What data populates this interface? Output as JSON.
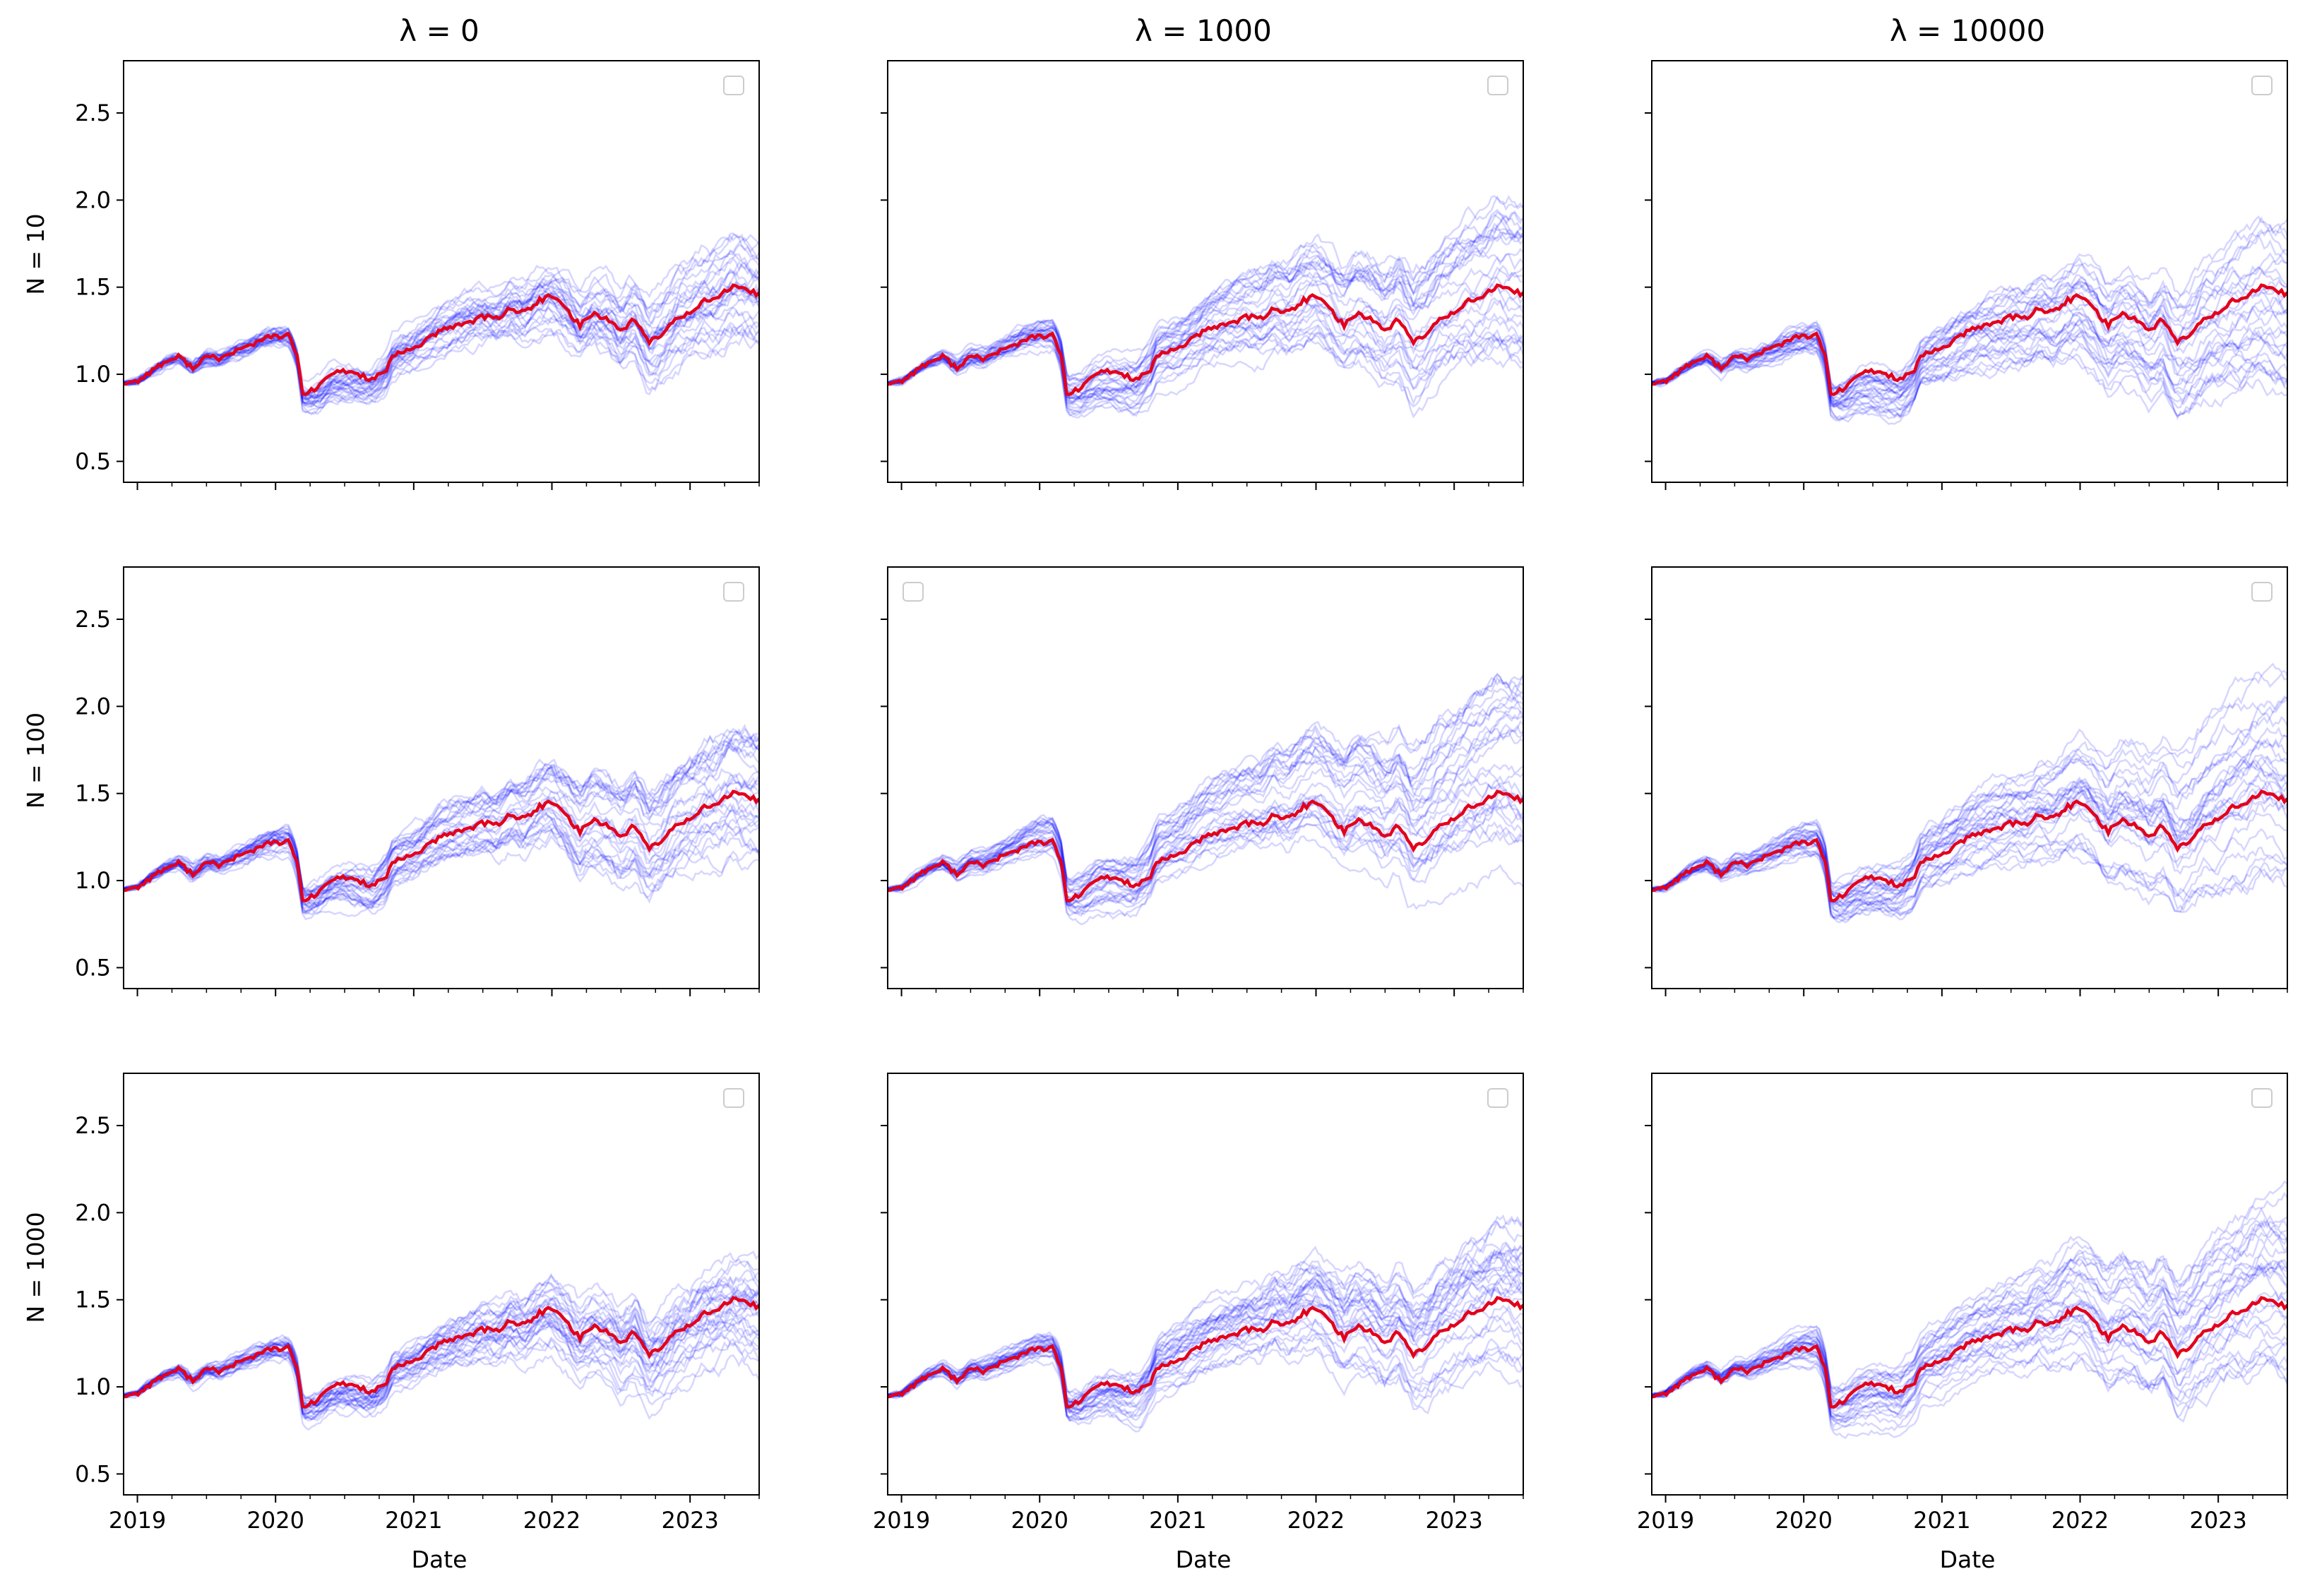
{
  "figure": {
    "col_titles": [
      "λ = 0",
      "λ = 1000",
      "λ = 10000"
    ],
    "row_labels": [
      "N = 10",
      "N = 100",
      "N = 1000"
    ],
    "xlabel": "Date"
  },
  "colors": {
    "benchmark": "#e3001b",
    "simulations": "#0000ff",
    "axes": "#000000",
    "background": "#ffffff"
  },
  "chart_data": {
    "type": "line",
    "layout": "3x3 grid of subplots, shared x and y axes",
    "x_range": [
      2018.9,
      2023.5
    ],
    "y_range": [
      0.38,
      2.8
    ],
    "x_ticks": [
      2019,
      2020,
      2021,
      2022,
      2023
    ],
    "x_tick_labels": [
      "2019",
      "2020",
      "2021",
      "2022",
      "2023"
    ],
    "y_ticks": [
      0.5,
      1.0,
      1.5,
      2.0,
      2.5
    ],
    "y_tick_labels": [
      "0.5",
      "1.0",
      "1.5",
      "2.0",
      "2.5"
    ],
    "benchmark_series": {
      "name": "benchmark",
      "x": [
        2018.9,
        2019.0,
        2019.1,
        2019.2,
        2019.3,
        2019.4,
        2019.5,
        2019.6,
        2019.7,
        2019.8,
        2019.9,
        2020.0,
        2020.1,
        2020.15,
        2020.2,
        2020.3,
        2020.4,
        2020.5,
        2020.6,
        2020.7,
        2020.8,
        2020.85,
        2020.9,
        2021.0,
        2021.1,
        2021.2,
        2021.3,
        2021.4,
        2021.5,
        2021.6,
        2021.7,
        2021.8,
        2021.9,
        2022.0,
        2022.1,
        2022.2,
        2022.3,
        2022.4,
        2022.5,
        2022.6,
        2022.7,
        2022.8,
        2022.9,
        2023.0,
        2023.1,
        2023.2,
        2023.3,
        2023.4,
        2023.5
      ],
      "y": [
        0.95,
        0.96,
        1.02,
        1.07,
        1.1,
        1.04,
        1.1,
        1.09,
        1.13,
        1.16,
        1.2,
        1.22,
        1.22,
        1.12,
        0.88,
        0.92,
        1.0,
        1.02,
        1.0,
        0.97,
        1.02,
        1.1,
        1.12,
        1.15,
        1.2,
        1.25,
        1.28,
        1.3,
        1.33,
        1.32,
        1.38,
        1.35,
        1.42,
        1.45,
        1.38,
        1.28,
        1.35,
        1.32,
        1.25,
        1.32,
        1.18,
        1.23,
        1.32,
        1.36,
        1.42,
        1.44,
        1.5,
        1.48,
        1.46
      ]
    },
    "panels": [
      {
        "row": 0,
        "col": 0,
        "title": "λ = 0",
        "ylabel": "N = 10",
        "n_paths": 30,
        "spread": 0.55,
        "bias": 0.0,
        "dip": 0.3,
        "legend": "top-right"
      },
      {
        "row": 0,
        "col": 1,
        "title": "λ = 1000",
        "ylabel": "",
        "n_paths": 30,
        "spread": 0.9,
        "bias": 0.05,
        "dip": 0.45,
        "legend": "top-right"
      },
      {
        "row": 0,
        "col": 2,
        "title": "λ = 10000",
        "ylabel": "",
        "n_paths": 30,
        "spread": 0.95,
        "bias": -0.1,
        "dip": 0.4,
        "legend": "top-right"
      },
      {
        "row": 1,
        "col": 0,
        "title": "",
        "ylabel": "N = 100",
        "n_paths": 30,
        "spread": 0.75,
        "bias": 0.0,
        "dip": 0.3,
        "legend": "top-right"
      },
      {
        "row": 1,
        "col": 1,
        "title": "",
        "ylabel": "",
        "n_paths": 30,
        "spread": 1.2,
        "bias": 0.15,
        "dip": 0.45,
        "legend": "top-left"
      },
      {
        "row": 1,
        "col": 2,
        "title": "",
        "ylabel": "",
        "n_paths": 30,
        "spread": 1.2,
        "bias": 0.1,
        "dip": 0.45,
        "legend": "top-right"
      },
      {
        "row": 2,
        "col": 0,
        "title": "",
        "ylabel": "N = 1000",
        "n_paths": 30,
        "spread": 0.55,
        "bias": -0.05,
        "dip": 0.3,
        "legend": "top-right"
      },
      {
        "row": 2,
        "col": 1,
        "title": "",
        "ylabel": "",
        "n_paths": 30,
        "spread": 0.9,
        "bias": 0.05,
        "dip": 0.4,
        "legend": "top-right"
      },
      {
        "row": 2,
        "col": 2,
        "title": "",
        "ylabel": "",
        "n_paths": 30,
        "spread": 1.05,
        "bias": 0.1,
        "dip": 0.4,
        "legend": "top-right"
      }
    ]
  }
}
